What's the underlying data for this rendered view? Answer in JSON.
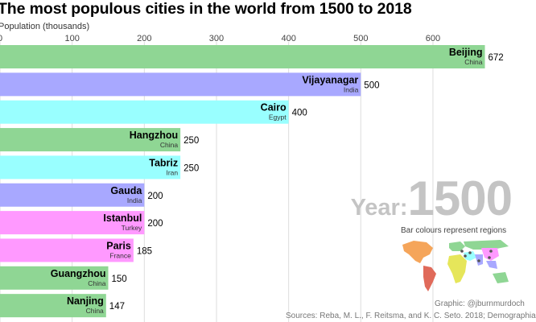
{
  "chart_data": {
    "type": "bar",
    "orientation": "horizontal",
    "title": "The most populous cities in the world from 1500 to 2018",
    "subtitle": "Population (thousands)",
    "xlim": [
      0,
      672
    ],
    "ticks": [
      0,
      100,
      200,
      300,
      400,
      500,
      600
    ],
    "grid": true,
    "categories": [
      "Beijing",
      "Vijayanagar",
      "Cairo",
      "Hangzhou",
      "Tabriz",
      "Gauda",
      "Istanbul",
      "Paris",
      "Guangzhou",
      "Nanjing"
    ],
    "countries": [
      "China",
      "India",
      "Egypt",
      "China",
      "Iran",
      "India",
      "Turkey",
      "France",
      "China",
      "China"
    ],
    "values": [
      672,
      500,
      400,
      250,
      250,
      200,
      200,
      185,
      150,
      147
    ],
    "colors": [
      "#8fd694",
      "#a8a8ff",
      "#99ffff",
      "#8fd694",
      "#99ffff",
      "#a8a8ff",
      "#ff99ff",
      "#ff99ff",
      "#8fd694",
      "#8fd694"
    ],
    "year_label": "Year:",
    "year": "1500"
  },
  "legend": {
    "title": "Bar colours represent regions"
  },
  "credit": "Graphic: @jburnmurdoch",
  "source": "Sources: Reba, M. L., F. Reitsma, and K. C. Seto. 2018; Demographia"
}
